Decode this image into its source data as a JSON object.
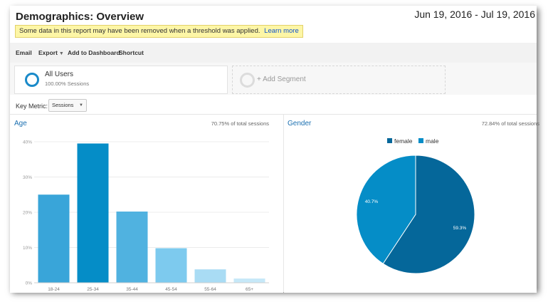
{
  "header": {
    "title": "Demographics: Overview",
    "date_range": "Jun 19, 2016 - Jul 19, 2016"
  },
  "notice": {
    "text": "Some data in this report may have been removed when a threshold was applied.",
    "link": "Learn more"
  },
  "toolbar": {
    "email": "Email",
    "export": "Export",
    "add_to_dashboard": "Add to Dashboard",
    "shortcut": "Shortcut"
  },
  "segments": {
    "active_name": "All Users",
    "active_sub": "100.00% Sessions",
    "add_label": "+ Add Segment"
  },
  "metric": {
    "label": "Key Metric:",
    "value": "Sessions"
  },
  "age_panel": {
    "title": "Age",
    "pct": "70.75% of total sessions"
  },
  "gender_panel": {
    "title": "Gender",
    "pct": "72.84% of total sessions"
  },
  "chart_data": [
    {
      "type": "bar",
      "title": "Age",
      "categories": [
        "18-24",
        "25-34",
        "35-44",
        "45-54",
        "55-64",
        "65+"
      ],
      "values": [
        25,
        39.5,
        20.2,
        9.8,
        3.8,
        1.2
      ],
      "ylim": [
        0,
        40
      ],
      "yticks": [
        "0%",
        "10%",
        "20%",
        "30%",
        "40%"
      ],
      "colors": [
        "#39a5d9",
        "#058dc7",
        "#50b2e0",
        "#7dcaee",
        "#a9dcf4",
        "#c6e8f8"
      ],
      "grid": true
    },
    {
      "type": "pie",
      "title": "Gender",
      "labels": [
        "female",
        "male"
      ],
      "values": [
        59.3,
        40.7
      ],
      "value_labels": [
        "59.3%",
        "40.7%"
      ],
      "colors": [
        "#05679a",
        "#058dc7"
      ],
      "legend": "top"
    }
  ]
}
